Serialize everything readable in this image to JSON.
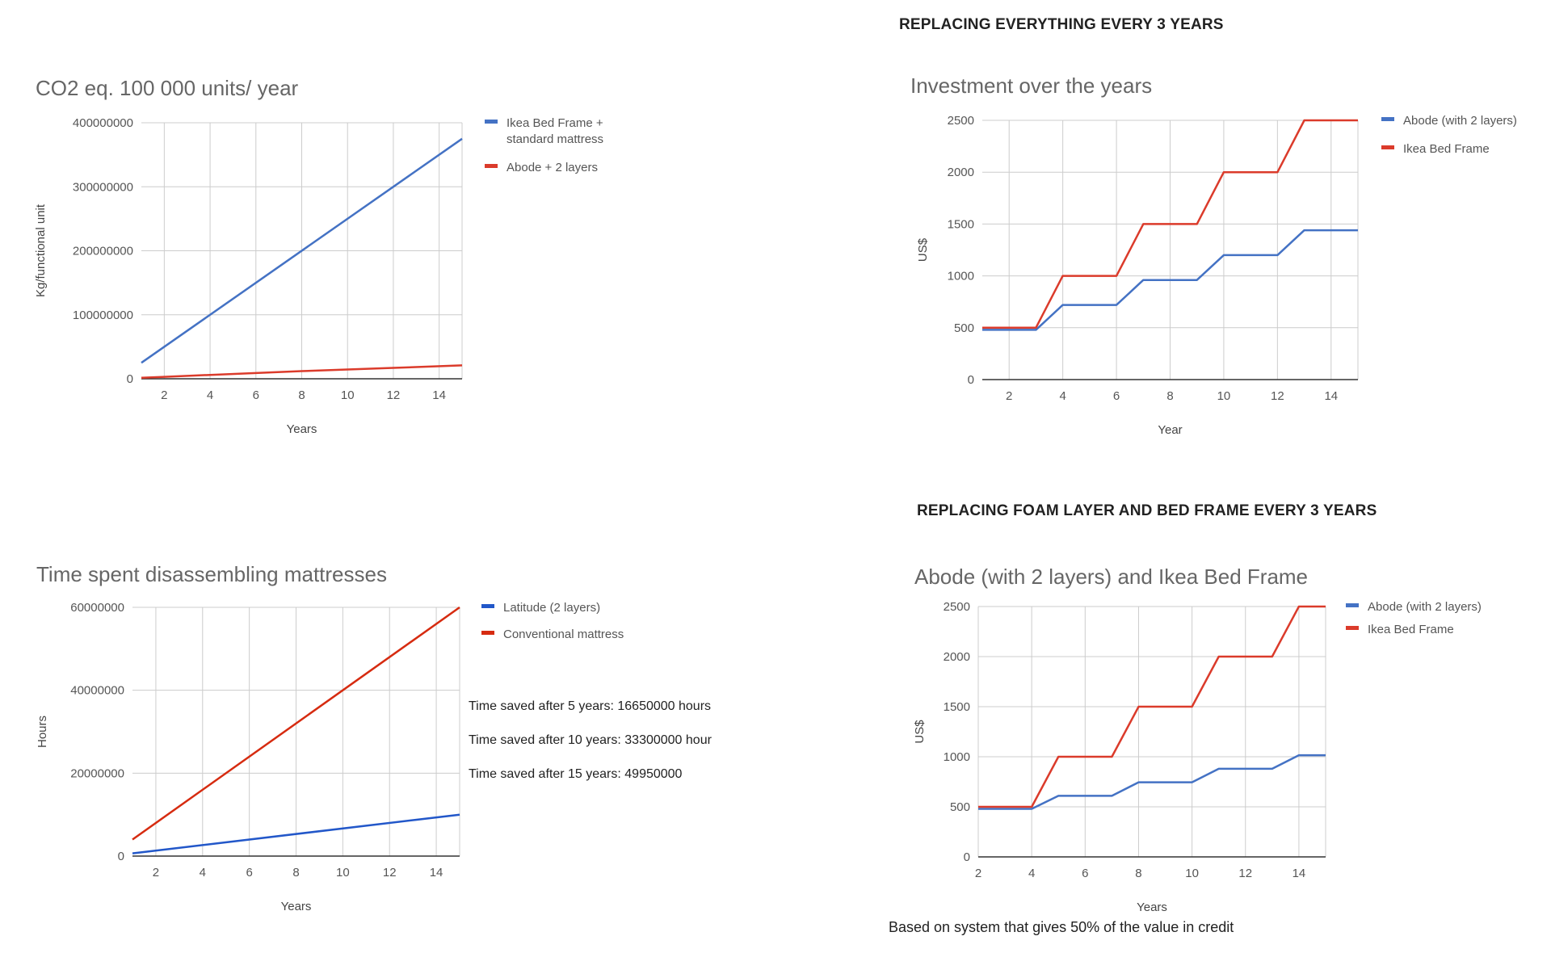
{
  "headings": {
    "everything": "REPLACING EVERYTHING EVERY 3 YEARS",
    "foam": "REPLACING FOAM LAYER AND BED FRAME EVERY 3 YEARS"
  },
  "footnote": "Based on system that gives 50% of the value in credit",
  "colors": {
    "blue": "#4472c4",
    "red": "#db3b2b",
    "blue_dark": "#2257c9",
    "red_dark": "#d62b10"
  },
  "chart_data": [
    {
      "id": "co2",
      "type": "line",
      "title": "CO2 eq. 100 000 units/ year",
      "xlabel": "Years",
      "ylabel": "Kg/functional unit",
      "xlim": [
        1,
        15
      ],
      "ylim": [
        0,
        400000000
      ],
      "xticks": [
        2,
        4,
        6,
        8,
        10,
        12,
        14
      ],
      "yticks": [
        0,
        100000000,
        200000000,
        300000000,
        400000000
      ],
      "ytick_labels": [
        "0",
        "100000000",
        "200000000",
        "300000000",
        "400000000"
      ],
      "grid": true,
      "legend_position": "right",
      "series": [
        {
          "name": "Ikea Bed Frame + standard mattress",
          "legend_lines": [
            "Ikea Bed Frame +",
            "standard mattress"
          ],
          "color": "#4472c4",
          "x": [
            1,
            15
          ],
          "y": [
            25000000,
            375000000
          ]
        },
        {
          "name": "Abode + 2 layers",
          "legend_lines": [
            "Abode + 2 layers"
          ],
          "color": "#db3b2b",
          "x": [
            1,
            2,
            4,
            6,
            8,
            10,
            12,
            15
          ],
          "y": [
            1500000,
            3000000,
            6000000,
            9000000,
            12000000,
            14500000,
            17000000,
            21000000
          ]
        }
      ]
    },
    {
      "id": "invest1",
      "type": "line",
      "title": "Investment over the years",
      "xlabel": "Year",
      "ylabel": "US$",
      "xlim": [
        1,
        15
      ],
      "ylim": [
        0,
        2500
      ],
      "xticks": [
        2,
        4,
        6,
        8,
        10,
        12,
        14
      ],
      "yticks": [
        0,
        500,
        1000,
        1500,
        2000,
        2500
      ],
      "ytick_labels": [
        "0",
        "500",
        "1000",
        "1500",
        "2000",
        "2500"
      ],
      "grid": true,
      "legend_position": "right",
      "series": [
        {
          "name": "Abode (with 2 layers)",
          "legend_lines": [
            "Abode (with 2 layers)"
          ],
          "color": "#4472c4",
          "x": [
            1,
            3,
            4,
            6,
            7,
            9,
            10,
            12,
            13,
            15
          ],
          "y": [
            480,
            480,
            720,
            720,
            960,
            960,
            1200,
            1200,
            1440,
            1440
          ]
        },
        {
          "name": "Ikea Bed Frame",
          "legend_lines": [
            "Ikea Bed Frame"
          ],
          "color": "#db3b2b",
          "x": [
            1,
            3,
            4,
            6,
            7,
            9,
            10,
            12,
            13,
            15
          ],
          "y": [
            500,
            500,
            1000,
            1000,
            1500,
            1500,
            2000,
            2000,
            2500,
            2500
          ]
        }
      ]
    },
    {
      "id": "time",
      "type": "line",
      "title": "Time spent disassembling mattresses",
      "xlabel": "Years",
      "ylabel": "Hours",
      "xlim": [
        1,
        15
      ],
      "ylim": [
        0,
        60000000
      ],
      "xticks": [
        2,
        4,
        6,
        8,
        10,
        12,
        14
      ],
      "yticks": [
        0,
        20000000,
        40000000,
        60000000
      ],
      "ytick_labels": [
        "0",
        "20000000",
        "40000000",
        "60000000"
      ],
      "grid": true,
      "legend_position": "right",
      "annotations": [
        "Time saved after 5 years: 16650000 hours",
        "Time saved after 10 years: 33300000 hour",
        "Time saved after 15 years: 49950000"
      ],
      "series": [
        {
          "name": "Latitude (2 layers)",
          "legend_lines": [
            "Latitude (2 layers)"
          ],
          "color": "#2257c9",
          "x": [
            1,
            15
          ],
          "y": [
            670000,
            10000000
          ]
        },
        {
          "name": "Conventional mattress",
          "legend_lines": [
            "Conventional mattress"
          ],
          "color": "#d62b10",
          "x": [
            1,
            15
          ],
          "y": [
            4000000,
            60000000
          ]
        }
      ]
    },
    {
      "id": "invest2",
      "type": "line",
      "title": "Abode (with 2 layers)  and Ikea Bed Frame",
      "xlabel": "Years",
      "ylabel": "US$",
      "xlim": [
        2,
        15
      ],
      "ylim": [
        0,
        2500
      ],
      "xticks": [
        2,
        4,
        6,
        8,
        10,
        12,
        14
      ],
      "yticks": [
        0,
        500,
        1000,
        1500,
        2000,
        2500
      ],
      "ytick_labels": [
        "0",
        "500",
        "1000",
        "1500",
        "2000",
        "2500"
      ],
      "grid": true,
      "legend_position": "right",
      "series": [
        {
          "name": "Abode (with 2 layers)",
          "legend_lines": [
            "Abode (with 2 layers)"
          ],
          "color": "#4472c4",
          "x": [
            2,
            4,
            5,
            7,
            8,
            10,
            11,
            13,
            14,
            15
          ],
          "y": [
            480,
            480,
            610,
            610,
            745,
            745,
            880,
            880,
            1015,
            1015
          ]
        },
        {
          "name": "Ikea Bed Frame",
          "legend_lines": [
            "Ikea Bed Frame"
          ],
          "color": "#db3b2b",
          "x": [
            2,
            4,
            5,
            7,
            8,
            10,
            11,
            13,
            14,
            15
          ],
          "y": [
            500,
            500,
            1000,
            1000,
            1500,
            1500,
            2000,
            2000,
            2500,
            2500
          ]
        }
      ]
    }
  ]
}
